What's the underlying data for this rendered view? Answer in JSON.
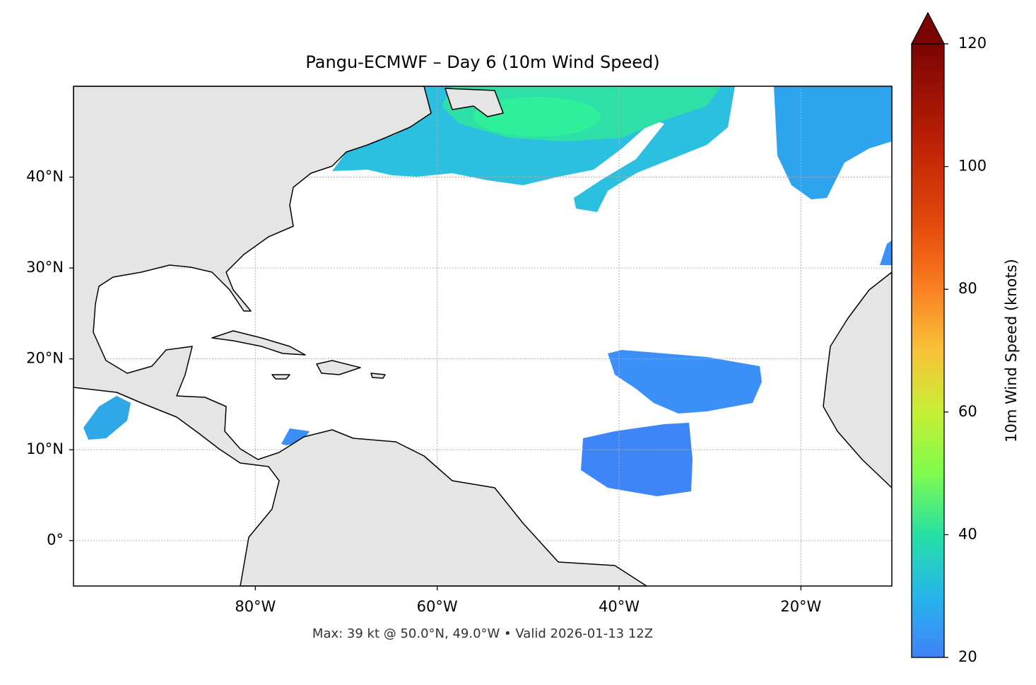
{
  "chart_data": {
    "type": "map",
    "title": "Pangu-ECMWF – Day 6 (10m Wind Speed)",
    "annotation": "Max: 39 kt @ 50.0°N, 49.0°W • Valid 2026-01-13 12Z",
    "xlim": [
      -100,
      -10
    ],
    "ylim": [
      -5,
      50
    ],
    "xticks": [
      {
        "value": -80,
        "label": "80°W"
      },
      {
        "value": -60,
        "label": "60°W"
      },
      {
        "value": -40,
        "label": "40°W"
      },
      {
        "value": -20,
        "label": "20°W"
      }
    ],
    "yticks": [
      {
        "value": 0,
        "label": "0°"
      },
      {
        "value": 10,
        "label": "10°N"
      },
      {
        "value": 20,
        "label": "20°N"
      },
      {
        "value": 30,
        "label": "30°N"
      },
      {
        "value": 40,
        "label": "40°N"
      }
    ],
    "grid": true,
    "colorbar": {
      "label": "10m Wind Speed (knots)",
      "lim": [
        20,
        120
      ],
      "ticks": [
        20,
        40,
        60,
        80,
        100,
        120
      ],
      "cmap": "turbo",
      "extend": "max"
    }
  }
}
